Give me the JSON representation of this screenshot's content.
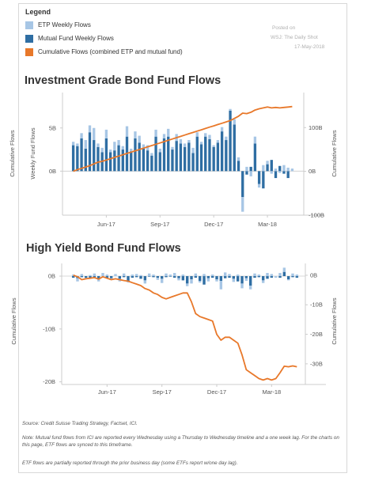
{
  "legend": {
    "title": "Legend",
    "items": [
      {
        "label": "ETP Weekly Flows",
        "color": "#a7c6e5"
      },
      {
        "label": "Mutual Fund Weekly Flows",
        "color": "#2f6ea3"
      },
      {
        "label": "Cumulative Flows (combined ETP and mutual fund)",
        "color": "#e8782a"
      }
    ]
  },
  "posted": {
    "line1": "Posted on",
    "line2": "WSJ: The Daily Shot",
    "line3": "17-May-2018"
  },
  "footer": {
    "source": "Source:  Credit Suisse Trading Strategy, Factset, ICI.",
    "note": "Note:  Mutual fund flows from ICI are reported every Wednesday using a Thursday to Wednesday timeline and a one week lag.  For the charts on this page, ETF flows are synced to this timeframe.",
    "etf": "ETF flows are partially reported through the prior business day (some ETFs report w/one day lag)."
  },
  "colors": {
    "etp": "#a7c6e5",
    "mf": "#2f6ea3",
    "cum": "#e8782a",
    "grid": "#cccccc",
    "text": "#555555"
  },
  "chart_data": [
    {
      "type": "bar",
      "title": "Investment Grade Bond Fund Flows",
      "ylabel_left": "Weekly Fund Flows",
      "ylabel_left_outer": "Cumulative Flows",
      "ylabel_right": "Cumulative Flows",
      "x_ticks": [
        "Jun-17",
        "Sep-17",
        "Dec-17",
        "Mar-18"
      ],
      "x_tick_weeks": [
        8,
        21,
        34,
        47
      ],
      "left_ticks": [
        {
          "v": 0,
          "label": "0B"
        },
        {
          "v": 5,
          "label": "5B"
        }
      ],
      "right_ticks": [
        {
          "v": 100,
          "label": "100B"
        },
        {
          "v": 0,
          "label": "0B"
        },
        {
          "v": -100,
          "label": "-100B"
        }
      ],
      "left_range": [
        -5.1,
        9.1
      ],
      "right_range": [
        -100,
        180
      ],
      "grid": true,
      "series": [
        {
          "name": "ETP Weekly Flows",
          "kind": "bar",
          "values": [
            0.4,
            0.3,
            0.6,
            1.0,
            0.8,
            1.4,
            0.4,
            0.5,
            1.0,
            0.3,
            1.0,
            0.6,
            0.4,
            1.2,
            0.3,
            0.8,
            0.8,
            0.5,
            0.6,
            0.3,
            0.8,
            0.4,
            0.5,
            0.9,
            0.3,
            0.8,
            0.5,
            0.4,
            0.3,
            0.6,
            0.5,
            0.3,
            0.4,
            0.5,
            0.2,
            0.3,
            0.5,
            0.4,
            0.2,
            0.6,
            0.4,
            -1.7,
            0.5,
            -0.6,
            0.8,
            -0.4,
            0.7,
            0.4,
            -0.3,
            0.3,
            -0.2,
            0.7,
            0.4,
            0.3
          ]
        },
        {
          "name": "Mutual Fund Weekly Flows",
          "kind": "bar",
          "values": [
            3.0,
            2.9,
            3.8,
            2.6,
            4.5,
            3.6,
            2.8,
            2.2,
            3.8,
            2.2,
            2.4,
            3.0,
            2.5,
            4.0,
            2.3,
            3.8,
            3.3,
            2.6,
            2.4,
            1.8,
            4.0,
            2.2,
            3.8,
            4.0,
            2.5,
            3.5,
            3.2,
            2.8,
            3.3,
            2.1,
            4.0,
            3.1,
            4.0,
            3.7,
            2.8,
            3.3,
            4.6,
            3.6,
            7.0,
            5.4,
            1.2,
            -3.0,
            -0.4,
            0.5,
            3.2,
            -1.5,
            -2.0,
            0.8,
            1.3,
            -0.8,
            0.6,
            -0.3,
            -0.8,
            0.0
          ]
        },
        {
          "name": "Cumulative Flows (combined ETP and mutual fund)",
          "kind": "line",
          "values": [
            0,
            4,
            7,
            10,
            13,
            17,
            21,
            23,
            26,
            29,
            32,
            35,
            38,
            41,
            44,
            47,
            50,
            53,
            56,
            59,
            62,
            65,
            68,
            71,
            74,
            77,
            80,
            83,
            86,
            89,
            92,
            95,
            98,
            101,
            104,
            107,
            110,
            113,
            116,
            121,
            126,
            133,
            132,
            135,
            140,
            143,
            145,
            147,
            145,
            146,
            145,
            146,
            147,
            148
          ]
        }
      ]
    },
    {
      "type": "bar",
      "title": "High Yield Bond Fund Flows",
      "ylabel_left": "Cumulative Flows",
      "ylabel_right": "Cumulative Flows",
      "x_ticks": [
        "Jun-17",
        "Sep-17",
        "Dec-17",
        "Mar-18"
      ],
      "x_tick_weeks": [
        8,
        21,
        34,
        47
      ],
      "left_ticks": [
        {
          "v": 0,
          "label": "0B"
        },
        {
          "v": -10,
          "label": "-10B"
        },
        {
          "v": -20,
          "label": "-20B"
        }
      ],
      "right_ticks": [
        {
          "v": 0,
          "label": "0B"
        },
        {
          "v": -10,
          "label": "-10B"
        },
        {
          "v": -20,
          "label": "-20B"
        },
        {
          "v": -30,
          "label": "-30B"
        }
      ],
      "left_range": [
        -20.5,
        2.4
      ],
      "right_range": [
        -37,
        4
      ],
      "grid": true,
      "series": [
        {
          "name": "ETP Weekly Flows",
          "kind": "bar",
          "values": [
            0.3,
            -0.6,
            0.4,
            -0.3,
            0.2,
            0.5,
            -0.4,
            0.6,
            0.3,
            -0.2,
            0.4,
            -0.5,
            0.5,
            -0.3,
            0.3,
            0.4,
            0.2,
            -0.6,
            0.5,
            0.3,
            -0.4,
            -0.8,
            0.5,
            0.3,
            0.6,
            -0.4,
            0.3,
            -0.5,
            -0.8,
            0.5,
            -0.3,
            0.4,
            -0.6,
            0.3,
            -0.4,
            -1.6,
            0.7,
            0.4,
            -0.6,
            0.3,
            -0.9,
            -0.5,
            -0.7,
            0.5,
            0.3,
            -0.5,
            0.6,
            0.4,
            -0.3,
            0.6,
            0.8,
            -0.2,
            0.5,
            0.3
          ]
        },
        {
          "name": "Mutual Fund Weekly Flows",
          "kind": "bar",
          "values": [
            -0.3,
            -0.4,
            -0.2,
            -0.3,
            -0.4,
            -0.2,
            -0.6,
            0.0,
            -0.3,
            -0.4,
            0.0,
            -0.5,
            -0.2,
            -0.9,
            -0.3,
            -0.2,
            -0.5,
            -0.8,
            -0.1,
            -0.2,
            -0.3,
            -0.5,
            -0.2,
            -0.1,
            -0.3,
            -0.4,
            -0.8,
            -1.4,
            -0.6,
            -0.3,
            -0.9,
            -1.6,
            -0.4,
            -0.3,
            -0.6,
            -0.9,
            -0.4,
            -0.3,
            -0.5,
            -1.0,
            -1.4,
            -0.4,
            -1.8,
            -0.3,
            -0.2,
            -0.8,
            -0.5,
            -0.3,
            0.0,
            -0.3,
            0.8,
            -0.6,
            -0.2,
            -0.3
          ]
        },
        {
          "name": "Cumulative Flows (combined ETP and mutual fund)",
          "kind": "line",
          "values": [
            0,
            -0.5,
            -1.5,
            -1.2,
            -1,
            -0.8,
            -1.3,
            -0.5,
            -1,
            -1.5,
            -1.2,
            -1.5,
            -1.8,
            -2,
            -2.5,
            -3,
            -3.5,
            -4.5,
            -5,
            -6,
            -6.5,
            -7.5,
            -8,
            -7.5,
            -7,
            -6.5,
            -6,
            -6,
            -9,
            -13,
            -14,
            -14.5,
            -15,
            -15.5,
            -20,
            -22,
            -21,
            -21,
            -22,
            -23,
            -27,
            -32,
            -33,
            -34,
            -35,
            -35.5,
            -35,
            -35.5,
            -35,
            -33,
            -30.8,
            -31,
            -30.7,
            -31
          ]
        }
      ]
    }
  ]
}
